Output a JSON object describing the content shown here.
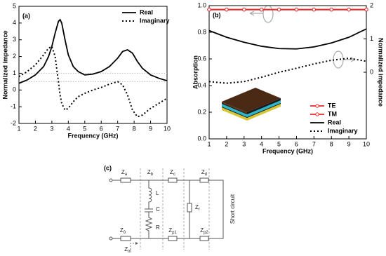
{
  "chart_data": [
    {
      "type": "line",
      "label": "(a)",
      "xlabel": "Frequency (GHz)",
      "ylabel": "Normalized impedance",
      "xlim": [
        1,
        10
      ],
      "xticks": [
        1,
        2,
        3,
        4,
        5,
        6,
        7,
        8,
        9,
        10
      ],
      "ylim": [
        -2,
        5
      ],
      "yticks": [
        -2,
        -1,
        0,
        1,
        2,
        3,
        4,
        5
      ],
      "hlines": [
        1,
        0.5
      ],
      "hline_color": "#bbbbbb",
      "legend": "upper right",
      "series": [
        {
          "name": "Real",
          "color": "#000000",
          "style": "solid",
          "x": [
            1,
            1.5,
            2,
            2.5,
            2.8,
            3,
            3.2,
            3.4,
            3.5,
            3.6,
            3.8,
            4,
            4.3,
            4.6,
            5,
            5.5,
            6,
            6.5,
            7,
            7.3,
            7.6,
            7.9,
            8.2,
            8.5,
            9,
            9.5,
            10
          ],
          "values": [
            0.4,
            0.6,
            0.9,
            1.4,
            2.0,
            2.6,
            3.4,
            4.1,
            4.2,
            4.0,
            3.0,
            2.1,
            1.4,
            1.1,
            0.9,
            0.95,
            1.1,
            1.4,
            1.9,
            2.3,
            2.4,
            2.2,
            1.7,
            1.3,
            0.9,
            0.7,
            0.55
          ]
        },
        {
          "name": "Imaginary",
          "color": "#000000",
          "style": "dotted",
          "x": [
            1,
            1.5,
            2,
            2.5,
            2.8,
            3,
            3.2,
            3.4,
            3.5,
            3.6,
            3.8,
            4,
            4.3,
            4.6,
            5,
            5.5,
            6,
            6.5,
            7,
            7.3,
            7.6,
            7.9,
            8.2,
            8.5,
            9,
            9.5,
            10
          ],
          "values": [
            0.8,
            1.1,
            1.5,
            2.1,
            2.5,
            2.6,
            2.0,
            0.5,
            -0.3,
            -0.8,
            -1.2,
            -1.1,
            -0.7,
            -0.4,
            -0.2,
            0.0,
            0.15,
            0.35,
            0.5,
            0.3,
            -0.3,
            -1.2,
            -1.6,
            -1.5,
            -1.1,
            -0.8,
            -0.5
          ]
        }
      ]
    },
    {
      "type": "line",
      "label": "(b)",
      "xlabel": "Frequency (GHz)",
      "ylabel": "Absorption",
      "y2label": "Normalized impedance",
      "xlim": [
        1,
        10
      ],
      "xticks": [
        1,
        2,
        3,
        4,
        5,
        6,
        7,
        8,
        9,
        10
      ],
      "ylim": [
        0,
        1
      ],
      "yticks": [
        {
          "value": 0,
          "label": "0.0"
        },
        {
          "value": 0.2,
          "label": "0.2"
        },
        {
          "value": 0.4,
          "label": "0.4"
        },
        {
          "value": 0.6,
          "label": "0.6"
        },
        {
          "value": 0.8,
          "label": "0.8"
        },
        {
          "value": 1,
          "label": "1.0"
        }
      ],
      "y2lim": [
        -2,
        2
      ],
      "y2ticks": [
        0,
        1,
        2
      ],
      "legend": "lower right",
      "series": [
        {
          "name": "TE",
          "color": "#e8282a",
          "style": "solid",
          "marker": "circle",
          "x": [
            1,
            2,
            3,
            4,
            5,
            6,
            7,
            8,
            9,
            10
          ],
          "values": [
            0.97,
            0.97,
            0.97,
            0.97,
            0.97,
            0.97,
            0.97,
            0.97,
            0.97,
            0.97
          ]
        },
        {
          "name": "TM",
          "color": "#e8282a",
          "style": "solid",
          "marker": "circle",
          "x": [
            1,
            2,
            3,
            4,
            5,
            6,
            7,
            8,
            9,
            10
          ],
          "values": [
            0.97,
            0.97,
            0.97,
            0.97,
            0.97,
            0.97,
            0.97,
            0.97,
            0.97,
            0.97
          ]
        },
        {
          "name": "Real",
          "color": "#000000",
          "style": "solid",
          "axis": "y2",
          "x": [
            1,
            2,
            3,
            4,
            5,
            6,
            7,
            8,
            9,
            10
          ],
          "values": [
            1.25,
            1.05,
            0.9,
            0.78,
            0.71,
            0.7,
            0.76,
            0.88,
            1.05,
            1.3
          ]
        },
        {
          "name": "Imaginary",
          "color": "#000000",
          "style": "dotted",
          "axis": "y2",
          "x": [
            1,
            2,
            3,
            4,
            5,
            6,
            7,
            8,
            9,
            10
          ],
          "values": [
            -0.28,
            -0.33,
            -0.28,
            -0.15,
            0.0,
            0.12,
            0.25,
            0.36,
            0.42,
            0.33
          ]
        }
      ]
    }
  ],
  "diagram": {
    "label": "(c)",
    "components": [
      {
        "text": "Z",
        "sub": "a"
      },
      {
        "text": "Z",
        "sub": "b"
      },
      {
        "text": "Z",
        "sub": "c"
      },
      {
        "text": "Z",
        "sub": "d"
      },
      {
        "text": "Z",
        "sub": "r"
      },
      {
        "text": "Z",
        "sub": "0"
      },
      {
        "text": "Z",
        "sub": "in"
      },
      {
        "text": "Z",
        "sub": "p1"
      },
      {
        "text": "Z",
        "sub": "p2"
      }
    ],
    "elements": [
      "L",
      "C",
      "R"
    ],
    "note": "Short circuit"
  }
}
